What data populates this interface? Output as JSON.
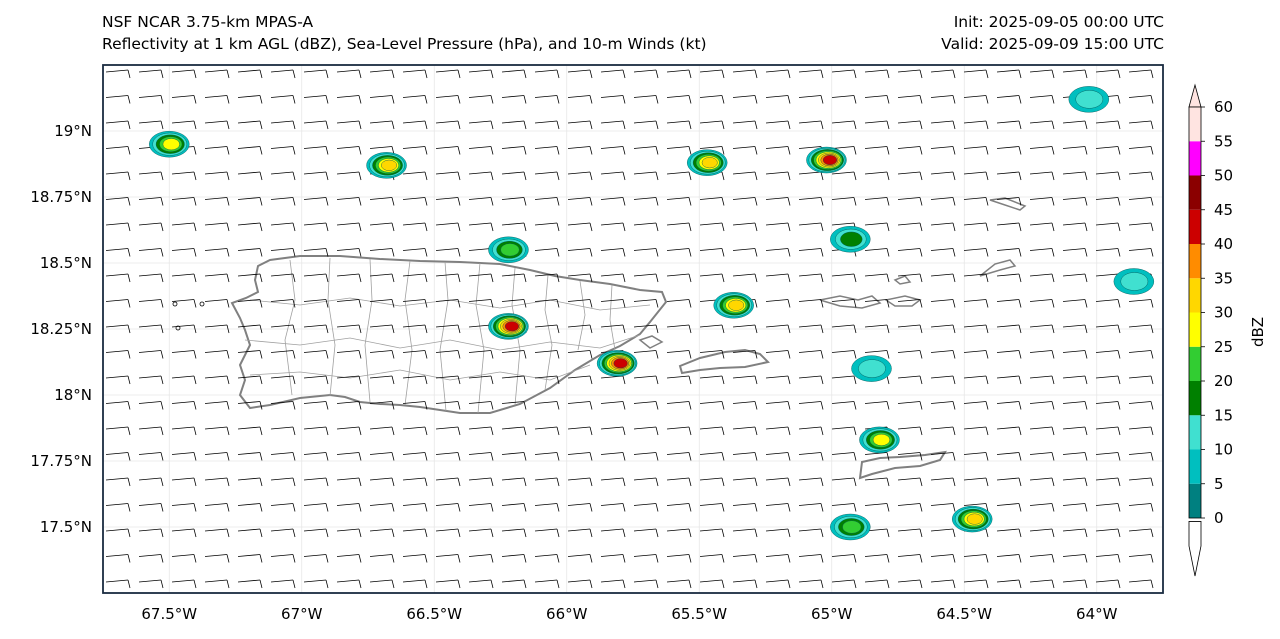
{
  "header": {
    "title_line1": "NSF NCAR 3.75-km MPAS-A",
    "title_line2": "Reflectivity at 1 km AGL (dBZ), Sea-Level Pressure (hPa), and 10-m Winds (kt)",
    "init": "Init: 2025-09-05 00:00 UTC",
    "valid": "Valid: 2025-09-09 15:00 UTC"
  },
  "axes": {
    "lon_labels": [
      "67.5°W",
      "67°W",
      "66.5°W",
      "66°W",
      "65.5°W",
      "65°W",
      "64.5°W",
      "64°W"
    ],
    "lat_labels": [
      "19°N",
      "18.75°N",
      "18.5°N",
      "18.25°N",
      "18°N",
      "17.75°N",
      "17.5°N"
    ]
  },
  "colorbar": {
    "label": "dBZ",
    "ticks": [
      "0",
      "5",
      "10",
      "15",
      "20",
      "25",
      "30",
      "35",
      "40",
      "45",
      "50",
      "55",
      "60"
    ],
    "colors": [
      "#008080",
      "#00bfbf",
      "#40e0d0",
      "#008000",
      "#32cd32",
      "#ffff00",
      "#ffd700",
      "#ff8c00",
      "#cc0000",
      "#8b0000",
      "#ff00ff",
      "#ffe4e1"
    ]
  },
  "map_data": {
    "lon_range": [
      -67.75,
      -63.75
    ],
    "lat_range": [
      17.25,
      19.25
    ],
    "wind_barb_color": "#000000",
    "coastline_color": "#808080",
    "municipal_border_color": "#a0a0a0",
    "reflectivity_cells": [
      {
        "lon": -67.5,
        "lat": 18.95,
        "peak_dbz": 28
      },
      {
        "lon": -66.68,
        "lat": 18.87,
        "peak_dbz": 30
      },
      {
        "lon": -66.22,
        "lat": 18.55,
        "peak_dbz": 22
      },
      {
        "lon": -66.22,
        "lat": 18.26,
        "peak_dbz": 40
      },
      {
        "lon": -65.81,
        "lat": 18.12,
        "peak_dbz": 42
      },
      {
        "lon": -65.47,
        "lat": 18.88,
        "peak_dbz": 32
      },
      {
        "lon": -65.37,
        "lat": 18.34,
        "peak_dbz": 30
      },
      {
        "lon": -65.02,
        "lat": 18.89,
        "peak_dbz": 40
      },
      {
        "lon": -64.93,
        "lat": 18.59,
        "peak_dbz": 15
      },
      {
        "lon": -64.85,
        "lat": 18.1,
        "peak_dbz": 12
      },
      {
        "lon": -64.82,
        "lat": 17.83,
        "peak_dbz": 25
      },
      {
        "lon": -64.93,
        "lat": 17.5,
        "peak_dbz": 20
      },
      {
        "lon": -64.47,
        "lat": 17.53,
        "peak_dbz": 30
      },
      {
        "lon": -64.03,
        "lat": 19.12,
        "peak_dbz": 12
      },
      {
        "lon": -63.86,
        "lat": 18.43,
        "peak_dbz": 12
      }
    ]
  }
}
